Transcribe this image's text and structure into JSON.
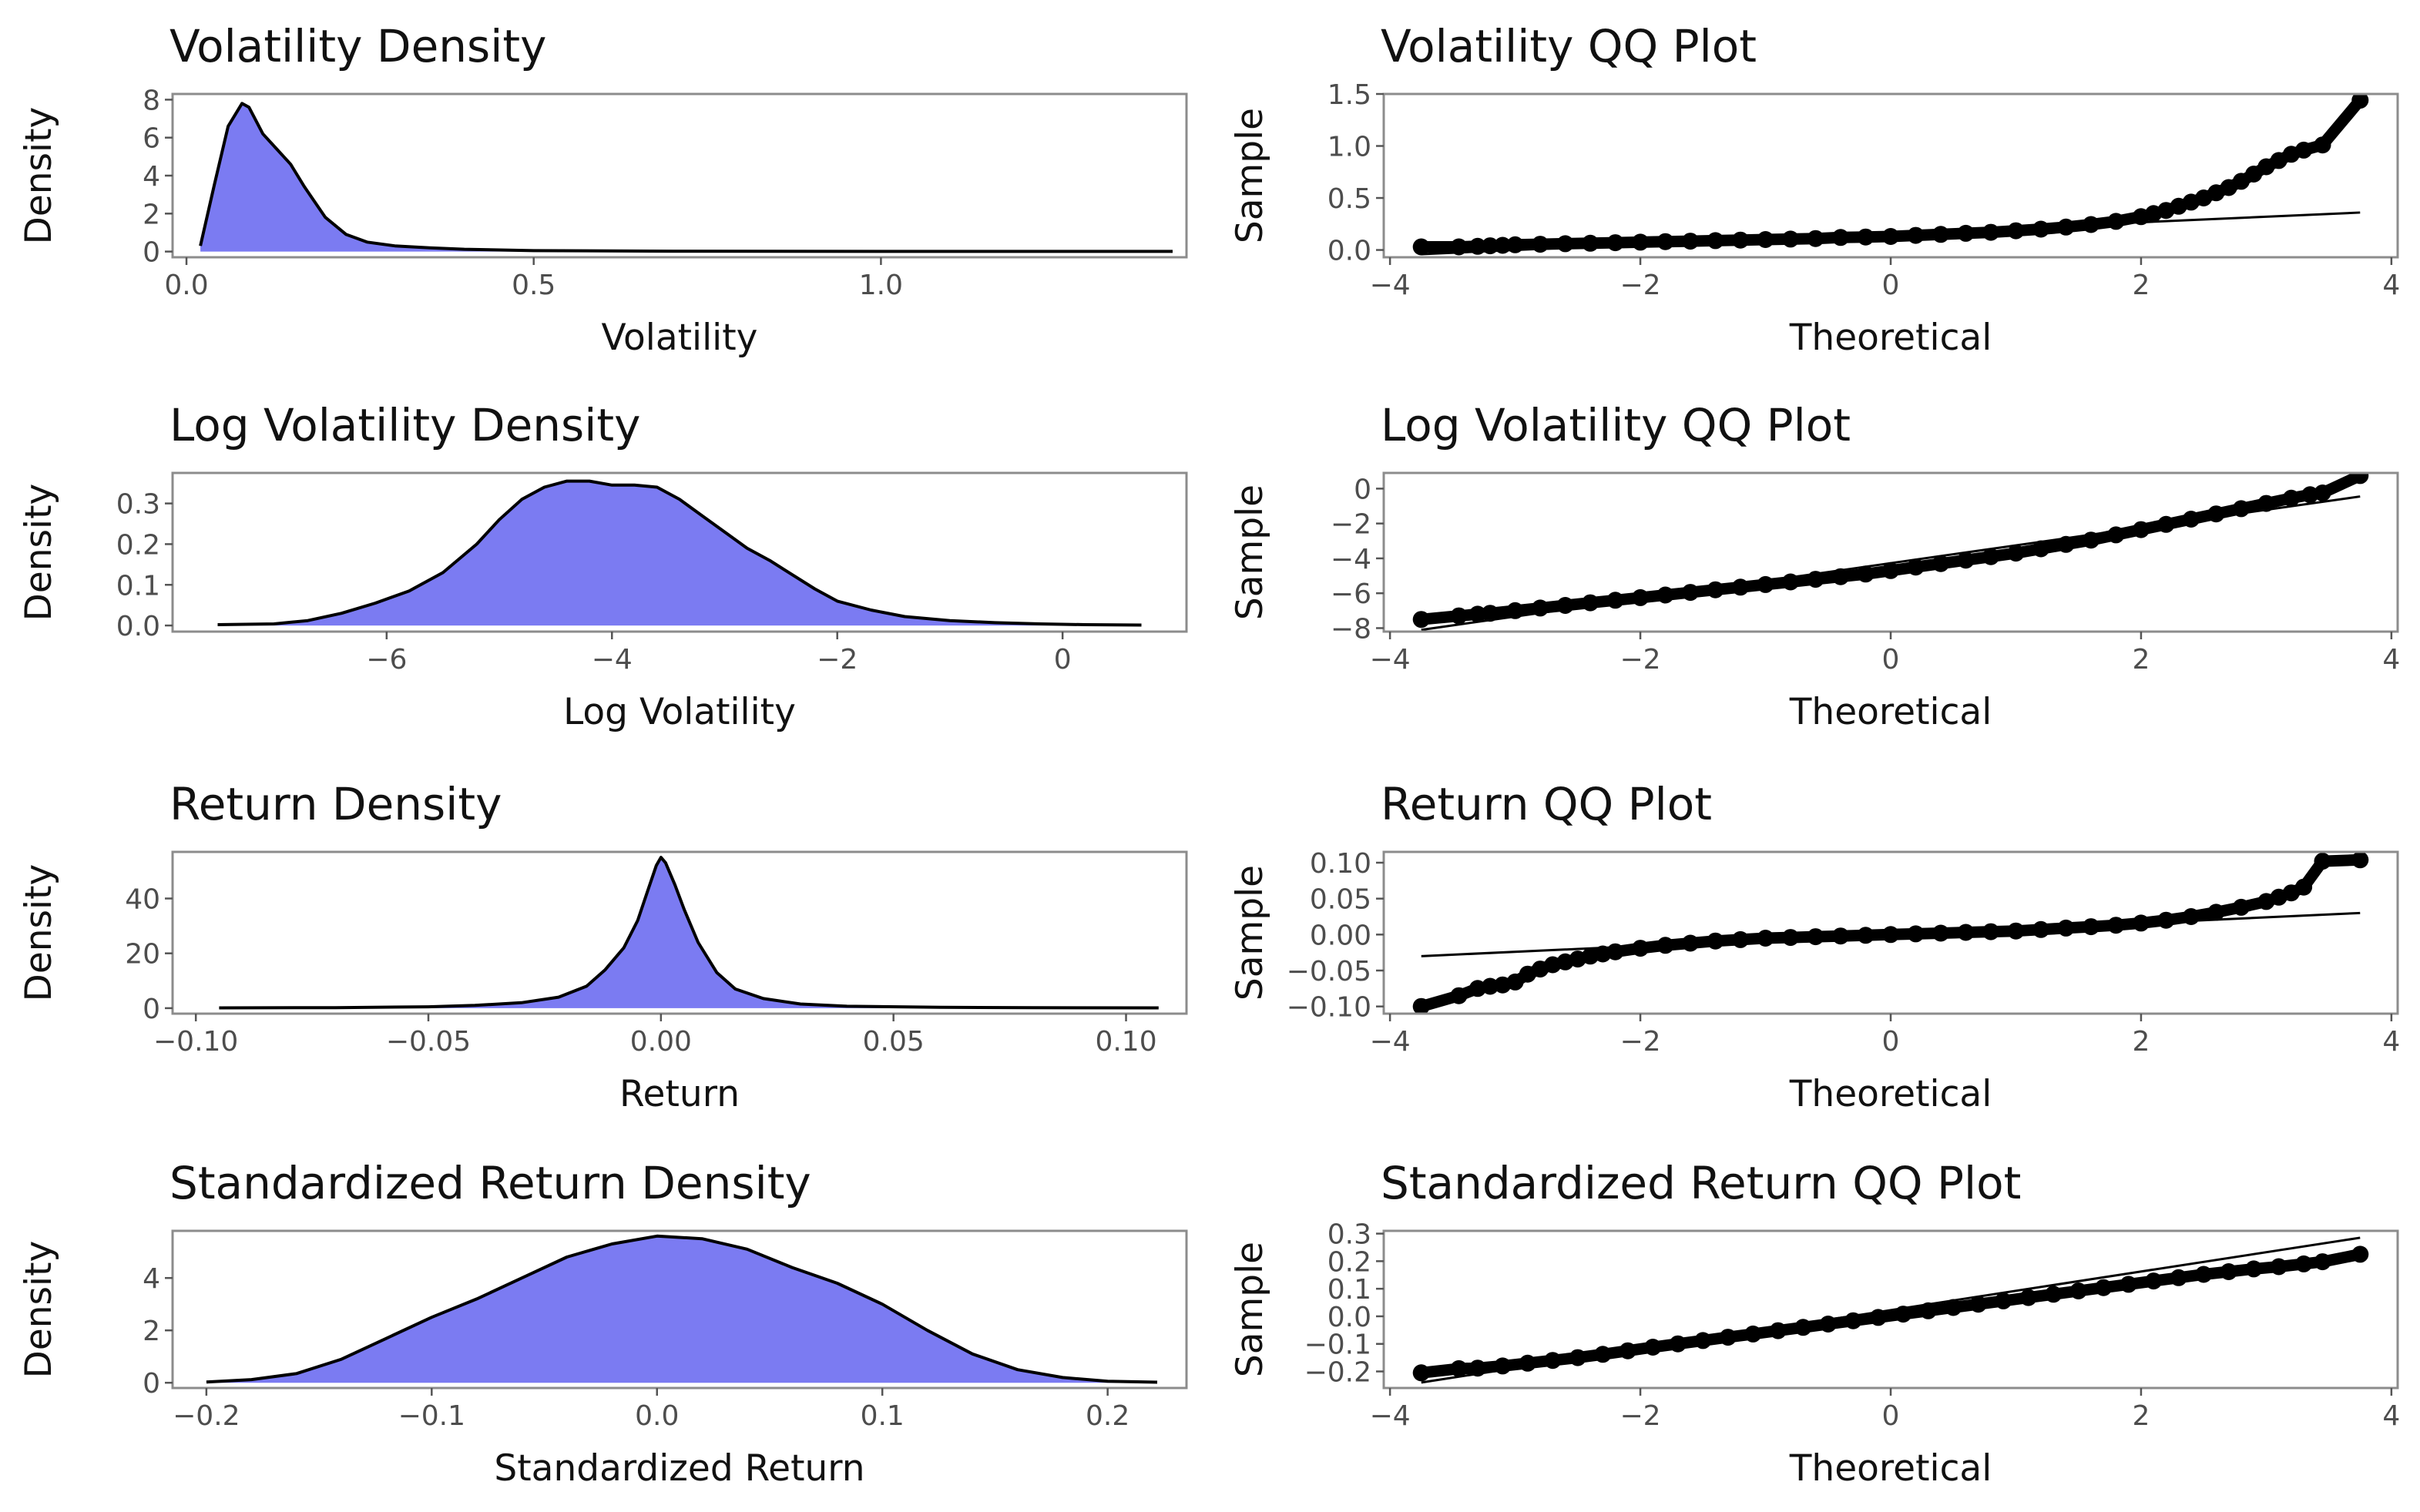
{
  "chart_data": [
    {
      "type": "area",
      "title": "Volatility Density",
      "xlabel": "Volatility",
      "ylabel": "Density",
      "xlim": [
        -0.02,
        1.44
      ],
      "ylim": [
        -0.3,
        8.3
      ],
      "xticks": [
        0.0,
        0.5,
        1.0
      ],
      "xtick_labels": [
        "0.0",
        "0.5",
        "1.0"
      ],
      "yticks": [
        0,
        2,
        4,
        6,
        8
      ],
      "ytick_labels": [
        "0",
        "2",
        "4",
        "6",
        "8"
      ],
      "fill_color": "#7b7bf2",
      "x": [
        0.02,
        0.04,
        0.06,
        0.08,
        0.09,
        0.11,
        0.13,
        0.15,
        0.17,
        0.2,
        0.23,
        0.26,
        0.3,
        0.35,
        0.4,
        0.5,
        0.7,
        1.0,
        1.42
      ],
      "y": [
        0.3,
        3.5,
        6.6,
        7.8,
        7.6,
        6.2,
        5.4,
        4.6,
        3.4,
        1.8,
        0.9,
        0.5,
        0.3,
        0.2,
        0.12,
        0.05,
        0.02,
        0.01,
        0.01
      ]
    },
    {
      "type": "scatter",
      "title": "Volatility QQ Plot",
      "xlabel": "Theoretical",
      "ylabel": "Sample",
      "xlim": [
        -4.05,
        4.05
      ],
      "ylim": [
        -0.07,
        1.5
      ],
      "xticks": [
        -4,
        -2,
        0,
        2,
        4
      ],
      "xtick_labels": [
        "−4",
        "−2",
        "0",
        "2",
        "4"
      ],
      "yticks": [
        0.0,
        0.5,
        1.0,
        1.5
      ],
      "ytick_labels": [
        "0.0",
        "0.5",
        "1.0",
        "1.5"
      ],
      "reference_line": {
        "x": [
          -3.75,
          3.75
        ],
        "y": [
          -0.04,
          0.36
        ]
      },
      "x": [
        -3.75,
        -3.45,
        -3.3,
        -3.2,
        -3.1,
        -3.0,
        -2.8,
        -2.6,
        -2.4,
        -2.2,
        -2.0,
        -1.8,
        -1.6,
        -1.4,
        -1.2,
        -1.0,
        -0.8,
        -0.6,
        -0.4,
        -0.2,
        0.0,
        0.2,
        0.4,
        0.6,
        0.8,
        1.0,
        1.2,
        1.4,
        1.6,
        1.8,
        2.0,
        2.1,
        2.2,
        2.3,
        2.4,
        2.5,
        2.6,
        2.7,
        2.8,
        2.9,
        3.0,
        3.1,
        3.2,
        3.3,
        3.45,
        3.75
      ],
      "y": [
        0.03,
        0.03,
        0.035,
        0.04,
        0.045,
        0.05,
        0.055,
        0.06,
        0.065,
        0.07,
        0.075,
        0.08,
        0.085,
        0.09,
        0.095,
        0.1,
        0.105,
        0.11,
        0.12,
        0.125,
        0.13,
        0.14,
        0.15,
        0.16,
        0.17,
        0.185,
        0.2,
        0.22,
        0.245,
        0.275,
        0.32,
        0.35,
        0.38,
        0.42,
        0.46,
        0.5,
        0.55,
        0.6,
        0.66,
        0.73,
        0.8,
        0.86,
        0.92,
        0.96,
        1.01,
        1.44
      ]
    },
    {
      "type": "area",
      "title": "Log Volatility Density",
      "xlabel": "Log Volatility",
      "ylabel": "Density",
      "xlim": [
        -7.9,
        1.1
      ],
      "ylim": [
        -0.015,
        0.375
      ],
      "xticks": [
        -6,
        -4,
        -2,
        0
      ],
      "xtick_labels": [
        "−6",
        "−4",
        "−2",
        "0"
      ],
      "yticks": [
        0.0,
        0.1,
        0.2,
        0.3
      ],
      "ytick_labels": [
        "0.0",
        "0.1",
        "0.2",
        "0.3"
      ],
      "fill_color": "#7b7bf2",
      "x": [
        -7.5,
        -7.0,
        -6.7,
        -6.4,
        -6.1,
        -5.8,
        -5.5,
        -5.2,
        -5.0,
        -4.8,
        -4.6,
        -4.4,
        -4.2,
        -4.0,
        -3.8,
        -3.6,
        -3.4,
        -3.2,
        -3.0,
        -2.8,
        -2.6,
        -2.4,
        -2.2,
        -2.0,
        -1.7,
        -1.4,
        -1.0,
        -0.6,
        -0.2,
        0.2,
        0.7
      ],
      "y": [
        0.002,
        0.004,
        0.012,
        0.03,
        0.055,
        0.085,
        0.13,
        0.2,
        0.26,
        0.31,
        0.34,
        0.355,
        0.355,
        0.345,
        0.345,
        0.34,
        0.31,
        0.27,
        0.23,
        0.19,
        0.16,
        0.125,
        0.09,
        0.06,
        0.038,
        0.022,
        0.012,
        0.007,
        0.004,
        0.002,
        0.001
      ]
    },
    {
      "type": "scatter",
      "title": "Log Volatility QQ Plot",
      "xlabel": "Theoretical",
      "ylabel": "Sample",
      "xlim": [
        -4.05,
        4.05
      ],
      "ylim": [
        -8.2,
        0.9
      ],
      "xticks": [
        -4,
        -2,
        0,
        2,
        4
      ],
      "xtick_labels": [
        "−4",
        "−2",
        "0",
        "2",
        "4"
      ],
      "yticks": [
        0,
        -2,
        -4,
        -6,
        -8
      ],
      "ytick_labels": [
        "0",
        "−2",
        "−4",
        "−6",
        "−8"
      ],
      "reference_line": {
        "x": [
          -3.75,
          3.75
        ],
        "y": [
          -8.1,
          -0.45
        ]
      },
      "x": [
        -3.75,
        -3.45,
        -3.3,
        -3.2,
        -3.0,
        -2.8,
        -2.6,
        -2.4,
        -2.2,
        -2.0,
        -1.8,
        -1.6,
        -1.4,
        -1.2,
        -1.0,
        -0.8,
        -0.6,
        -0.4,
        -0.2,
        0.0,
        0.2,
        0.4,
        0.6,
        0.8,
        1.0,
        1.2,
        1.4,
        1.6,
        1.8,
        2.0,
        2.2,
        2.4,
        2.6,
        2.8,
        3.0,
        3.2,
        3.35,
        3.45,
        3.75
      ],
      "y": [
        -7.5,
        -7.3,
        -7.2,
        -7.15,
        -7.0,
        -6.85,
        -6.7,
        -6.55,
        -6.4,
        -6.25,
        -6.1,
        -5.95,
        -5.8,
        -5.65,
        -5.5,
        -5.35,
        -5.2,
        -5.05,
        -4.9,
        -4.7,
        -4.5,
        -4.3,
        -4.1,
        -3.9,
        -3.7,
        -3.45,
        -3.2,
        -2.95,
        -2.65,
        -2.35,
        -2.05,
        -1.75,
        -1.45,
        -1.15,
        -0.85,
        -0.55,
        -0.35,
        -0.25,
        0.75
      ]
    },
    {
      "type": "area",
      "title": "Return Density",
      "xlabel": "Return",
      "ylabel": "Density",
      "xlim": [
        -0.105,
        0.113
      ],
      "ylim": [
        -2,
        57
      ],
      "xticks": [
        -0.1,
        -0.05,
        0.0,
        0.05,
        0.1
      ],
      "xtick_labels": [
        "−0.10",
        "−0.05",
        "0.00",
        "0.05",
        "0.10"
      ],
      "yticks": [
        0,
        20,
        40
      ],
      "ytick_labels": [
        "0",
        "20",
        "40"
      ],
      "fill_color": "#7b7bf2",
      "x": [
        -0.095,
        -0.07,
        -0.05,
        -0.04,
        -0.03,
        -0.022,
        -0.016,
        -0.012,
        -0.008,
        -0.005,
        -0.003,
        -0.001,
        0.0,
        0.001,
        0.003,
        0.005,
        0.008,
        0.012,
        0.016,
        0.022,
        0.03,
        0.04,
        0.06,
        0.08,
        0.107
      ],
      "y": [
        0.1,
        0.2,
        0.5,
        1.0,
        2.0,
        4.0,
        8.0,
        14.0,
        22.0,
        32.0,
        42.0,
        52.0,
        55.0,
        53.0,
        45.0,
        36.0,
        24.0,
        13.0,
        7.0,
        3.5,
        1.5,
        0.7,
        0.3,
        0.15,
        0.1
      ]
    },
    {
      "type": "scatter",
      "title": "Return QQ Plot",
      "xlabel": "Theoretical",
      "ylabel": "Sample",
      "xlim": [
        -4.05,
        4.05
      ],
      "ylim": [
        -0.11,
        0.115
      ],
      "xticks": [
        -4,
        -2,
        0,
        2,
        4
      ],
      "xtick_labels": [
        "−4",
        "−2",
        "0",
        "2",
        "4"
      ],
      "yticks": [
        0.1,
        0.05,
        0.0,
        -0.05,
        -0.1
      ],
      "ytick_labels": [
        "0.10",
        "0.05",
        "0.00",
        "−0.05",
        "−0.10"
      ],
      "reference_line": {
        "x": [
          -3.75,
          3.75
        ],
        "y": [
          -0.03,
          0.03
        ]
      },
      "x": [
        -3.75,
        -3.45,
        -3.3,
        -3.2,
        -3.1,
        -3.0,
        -2.9,
        -2.8,
        -2.7,
        -2.6,
        -2.5,
        -2.4,
        -2.3,
        -2.2,
        -2.0,
        -1.8,
        -1.6,
        -1.4,
        -1.2,
        -1.0,
        -0.8,
        -0.6,
        -0.4,
        -0.2,
        0.0,
        0.2,
        0.4,
        0.6,
        0.8,
        1.0,
        1.2,
        1.4,
        1.6,
        1.8,
        2.0,
        2.2,
        2.4,
        2.6,
        2.8,
        3.0,
        3.1,
        3.2,
        3.3,
        3.45,
        3.75
      ],
      "y": [
        -0.1,
        -0.085,
        -0.075,
        -0.072,
        -0.07,
        -0.066,
        -0.055,
        -0.048,
        -0.042,
        -0.038,
        -0.034,
        -0.03,
        -0.027,
        -0.024,
        -0.019,
        -0.015,
        -0.012,
        -0.009,
        -0.007,
        -0.005,
        -0.004,
        -0.003,
        -0.002,
        -0.001,
        0.0,
        0.001,
        0.002,
        0.003,
        0.004,
        0.005,
        0.007,
        0.009,
        0.011,
        0.013,
        0.016,
        0.02,
        0.025,
        0.031,
        0.038,
        0.046,
        0.052,
        0.058,
        0.066,
        0.102,
        0.104
      ]
    },
    {
      "type": "area",
      "title": "Standardized Return Density",
      "xlabel": "Standardized Return",
      "ylabel": "Density",
      "xlim": [
        -0.215,
        0.235
      ],
      "ylim": [
        -0.2,
        5.8
      ],
      "xticks": [
        -0.2,
        -0.1,
        0.0,
        0.1,
        0.2
      ],
      "xtick_labels": [
        "−0.2",
        "−0.1",
        "0.0",
        "0.1",
        "0.2"
      ],
      "yticks": [
        0,
        2,
        4
      ],
      "ytick_labels": [
        "0",
        "2",
        "4"
      ],
      "fill_color": "#7b7bf2",
      "x": [
        -0.2,
        -0.18,
        -0.16,
        -0.14,
        -0.12,
        -0.1,
        -0.08,
        -0.06,
        -0.04,
        -0.02,
        0.0,
        0.02,
        0.04,
        0.06,
        0.08,
        0.1,
        0.12,
        0.14,
        0.16,
        0.18,
        0.2,
        0.222
      ],
      "y": [
        0.03,
        0.12,
        0.35,
        0.9,
        1.7,
        2.5,
        3.2,
        4.0,
        4.8,
        5.3,
        5.6,
        5.5,
        5.1,
        4.4,
        3.8,
        3.0,
        2.0,
        1.1,
        0.5,
        0.2,
        0.06,
        0.02
      ]
    },
    {
      "type": "scatter",
      "title": "Standardized Return QQ Plot",
      "xlabel": "Theoretical",
      "ylabel": "Sample",
      "xlim": [
        -4.05,
        4.05
      ],
      "ylim": [
        -0.26,
        0.31
      ],
      "xticks": [
        -4,
        -2,
        0,
        2,
        4
      ],
      "xtick_labels": [
        "−4",
        "−2",
        "0",
        "2",
        "4"
      ],
      "yticks": [
        0.3,
        0.2,
        0.1,
        0.0,
        -0.1,
        -0.2
      ],
      "ytick_labels": [
        "0.3",
        "0.2",
        "0.1",
        "0.0",
        "−0.1",
        "−0.2"
      ],
      "reference_line": {
        "x": [
          -3.75,
          3.75
        ],
        "y": [
          -0.24,
          0.285
        ]
      },
      "x": [
        -3.75,
        -3.45,
        -3.3,
        -3.1,
        -2.9,
        -2.7,
        -2.5,
        -2.3,
        -2.1,
        -1.9,
        -1.7,
        -1.5,
        -1.3,
        -1.1,
        -0.9,
        -0.7,
        -0.5,
        -0.3,
        -0.1,
        0.1,
        0.3,
        0.5,
        0.7,
        0.9,
        1.1,
        1.3,
        1.5,
        1.7,
        1.9,
        2.1,
        2.3,
        2.5,
        2.7,
        2.9,
        3.1,
        3.3,
        3.45,
        3.75
      ],
      "y": [
        -0.205,
        -0.19,
        -0.188,
        -0.18,
        -0.17,
        -0.16,
        -0.15,
        -0.138,
        -0.125,
        -0.112,
        -0.1,
        -0.088,
        -0.076,
        -0.064,
        -0.052,
        -0.04,
        -0.028,
        -0.016,
        -0.004,
        0.008,
        0.02,
        0.032,
        0.044,
        0.056,
        0.068,
        0.08,
        0.092,
        0.104,
        0.116,
        0.128,
        0.14,
        0.152,
        0.162,
        0.172,
        0.18,
        0.19,
        0.198,
        0.225
      ]
    }
  ]
}
